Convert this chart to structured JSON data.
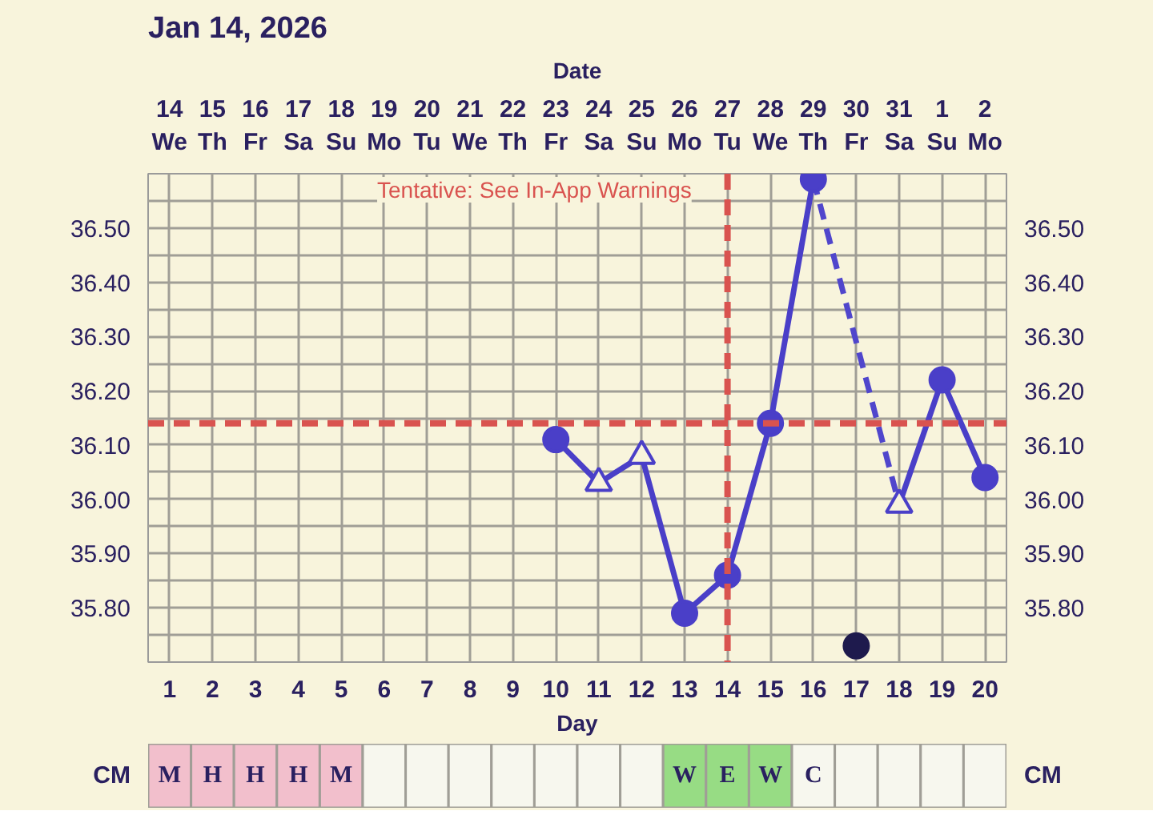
{
  "chart_data": [
    {
      "type": "line",
      "title": "Jan 14, 2026",
      "xlabel": "Day",
      "x2label": "Date",
      "xlim": [
        0.5,
        20.5
      ],
      "xticks": [
        1,
        2,
        3,
        4,
        5,
        6,
        7,
        8,
        9,
        10,
        11,
        12,
        13,
        14,
        15,
        16,
        17,
        18,
        19,
        20
      ],
      "x2lim": [
        "2026-01-13T12:00",
        "2026-02-02T12:00"
      ],
      "x2ticks": [
        {
          "value": "2026-01-14",
          "label": "14\nWe"
        },
        {
          "value": "2026-01-15",
          "label": "15\nTh"
        },
        {
          "value": "2026-01-16",
          "label": "16\nFr"
        },
        {
          "value": "2026-01-17",
          "label": "17\nSa"
        },
        {
          "value": "2026-01-18",
          "label": "18\nSu"
        },
        {
          "value": "2026-01-19",
          "label": "19\nMo"
        },
        {
          "value": "2026-01-20",
          "label": "20\nTu"
        },
        {
          "value": "2026-01-21",
          "label": "21\nWe"
        },
        {
          "value": "2026-01-22",
          "label": "22\nTh"
        },
        {
          "value": "2026-01-23",
          "label": "23\nFr"
        },
        {
          "value": "2026-01-24",
          "label": "24\nSa"
        },
        {
          "value": "2026-01-25",
          "label": "25\nSu"
        },
        {
          "value": "2026-01-26",
          "label": "26\nMo"
        },
        {
          "value": "2026-01-27",
          "label": "27\nTu"
        },
        {
          "value": "2026-01-28",
          "label": "28\nWe"
        },
        {
          "value": "2026-01-29",
          "label": "29\nTh"
        },
        {
          "value": "2026-01-30",
          "label": "30\nFr"
        },
        {
          "value": "2026-01-31",
          "label": "31\nSa"
        },
        {
          "value": "2026-02-01",
          "label": "1\nSu"
        },
        {
          "value": "2026-02-02",
          "label": "2\nMo"
        }
      ],
      "ylim": [
        35.7,
        36.6
      ],
      "yticks": [
        {
          "value": 35.75,
          "label": null
        },
        {
          "value": 35.8,
          "label": "35.80"
        },
        {
          "value": 35.85,
          "label": null
        },
        {
          "value": 35.9,
          "label": "35.90"
        },
        {
          "value": 35.95,
          "label": null
        },
        {
          "value": 36.0,
          "label": "36.00"
        },
        {
          "value": 36.05,
          "label": null
        },
        {
          "value": 36.1,
          "label": "36.10"
        },
        {
          "value": 36.15,
          "label": null
        },
        {
          "value": 36.2,
          "label": "36.20"
        },
        {
          "value": 36.25,
          "label": null
        },
        {
          "value": 36.3,
          "label": "36.30"
        },
        {
          "value": 36.35,
          "label": null
        },
        {
          "value": 36.4,
          "label": "36.40"
        },
        {
          "value": 36.45,
          "label": null
        },
        {
          "value": 36.5,
          "label": "36.50"
        },
        {
          "value": 36.55,
          "label": null
        }
      ],
      "y2lim": [
        35.7,
        36.6
      ],
      "y2ticks": [
        {
          "value": 35.75,
          "label": null
        },
        {
          "value": 35.8,
          "label": "35.80"
        },
        {
          "value": 35.85,
          "label": null
        },
        {
          "value": 35.9,
          "label": "35.90"
        },
        {
          "value": 35.95,
          "label": null
        },
        {
          "value": 36.0,
          "label": "36.00"
        },
        {
          "value": 36.05,
          "label": null
        },
        {
          "value": 36.1,
          "label": "36.10"
        },
        {
          "value": 36.15,
          "label": null
        },
        {
          "value": 36.2,
          "label": "36.20"
        },
        {
          "value": 36.25,
          "label": null
        },
        {
          "value": 36.3,
          "label": "36.30"
        },
        {
          "value": 36.35,
          "label": null
        },
        {
          "value": 36.4,
          "label": "36.40"
        },
        {
          "value": 36.45,
          "label": null
        },
        {
          "value": 36.5,
          "label": "36.50"
        },
        {
          "value": 36.55,
          "label": null
        }
      ],
      "grid": true,
      "series": [
        {
          "type": "line",
          "color": "#4a3fc8",
          "line_style": "solid",
          "marker": "none",
          "x": [
            10,
            11,
            12,
            13,
            14,
            15,
            16,
            17,
            18,
            19,
            20
          ],
          "values": [
            36.11,
            36.03,
            36.08,
            35.79,
            35.86,
            36.14,
            36.59,
            null,
            35.99,
            36.22,
            36.04
          ]
        },
        {
          "type": "line",
          "color": "#5046cc",
          "line_style": "dashed",
          "marker": "none",
          "x": [
            16,
            18
          ],
          "values": [
            36.59,
            35.99
          ]
        },
        {
          "type": "scatter",
          "color": "#4a3fc8",
          "marker": "circle",
          "x": [
            10,
            13,
            14,
            15,
            16,
            19,
            20
          ],
          "values": [
            36.11,
            35.79,
            35.86,
            36.14,
            36.59,
            36.22,
            36.04
          ]
        },
        {
          "type": "scatter",
          "color": "#4a3fc8",
          "marker": "triangle",
          "x": [
            11,
            12,
            18
          ],
          "values": [
            36.03,
            36.08,
            35.99
          ]
        },
        {
          "type": "scatter",
          "color": "#1e1a4d",
          "marker": "circle",
          "x": [
            17
          ],
          "values": [
            35.73
          ]
        }
      ],
      "ref_lines": [
        {
          "axis": "y",
          "value": 36.14,
          "color": "#d9534f",
          "line_style": "dashed"
        },
        {
          "axis": "x",
          "value": 14,
          "color": "#d9534f",
          "line_style": "dashed"
        }
      ],
      "annotations": [
        "Tentative: See In-App Warnings"
      ]
    },
    {
      "type": "heatmap",
      "categories": [
        null,
        null,
        null,
        null,
        null,
        null,
        null,
        null,
        null,
        null,
        null,
        null,
        null,
        null,
        null,
        null,
        null,
        null,
        null,
        null
      ],
      "y_categories": [
        "CM"
      ],
      "y2_categories": [
        "CM"
      ],
      "cells": [
        [
          null,
          null,
          null,
          null,
          null,
          null,
          null,
          null,
          null,
          null,
          null,
          null,
          null,
          null,
          null,
          null,
          null,
          null,
          null,
          null
        ]
      ],
      "cell_labels": [
        [
          "M",
          "H",
          "H",
          "H",
          "M",
          null,
          null,
          null,
          null,
          null,
          null,
          null,
          "W",
          "E",
          "W",
          "C",
          null,
          null,
          null,
          null
        ]
      ],
      "colors": [
        "#f2bfcc",
        "#f2bfcc",
        "#f2bfcc",
        "#f2bfcc",
        "#f2bfcc",
        "#f7f7ee",
        "#f7f7ee",
        "#f7f7ee",
        "#f7f7ee",
        "#f7f7ee",
        "#f7f7ee",
        "#f7f7ee",
        "#97dc84",
        "#97dc84",
        "#97dc84",
        "#f7f7ee",
        "#f7f7ee",
        "#f7f7ee",
        "#f7f7ee",
        "#f7f7ee"
      ]
    }
  ]
}
